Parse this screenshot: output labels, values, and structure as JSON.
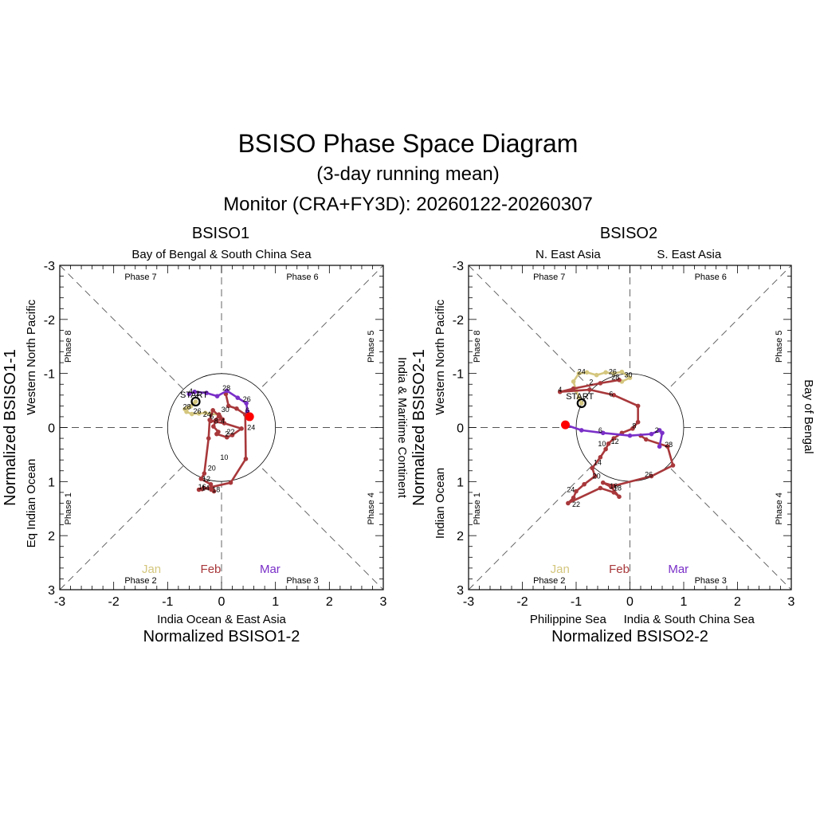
{
  "title": "BSISO Phase Space Diagram",
  "subtitle": "(3-day running mean)",
  "monitor": "Monitor (CRA+FY3D): 20260122-20260307",
  "month_legend": [
    {
      "label": "Jan",
      "color": "#D4C67E"
    },
    {
      "label": "Feb",
      "color": "#A8383B"
    },
    {
      "label": "Mar",
      "color": "#7A2FC8"
    }
  ],
  "chart_data": [
    {
      "type": "line",
      "panel_title": "BSISO1",
      "xlabel": "Normalized BSISO1-2",
      "ylabel": "Normalized BSISO1-1",
      "xlim": [
        -3,
        3
      ],
      "ylim": [
        -3,
        3
      ],
      "y_inverted": true,
      "x_ticks": [
        "-3",
        "-2",
        "-1",
        "0",
        "1",
        "2",
        "3"
      ],
      "y_ticks": [
        "-3",
        "-2",
        "-1",
        "0",
        "1",
        "2",
        "3"
      ],
      "top_region": "Bay of Bengal & South China Sea",
      "bottom_region": "India Ocean & East Asia",
      "left_regions": [
        "Eq Indian Ocean",
        "Western North Pacific"
      ],
      "right_region": "India & Maritime Continent",
      "phases": {
        "p1": "Phase 1",
        "p2": "Phase 2",
        "p3": "Phase 3",
        "p4": "Phase 4",
        "p5": "Phase 5",
        "p6": "Phase 6",
        "p7": "Phase 7",
        "p8": "Phase 8"
      },
      "start_label": "START",
      "series": [
        {
          "name": "Jan",
          "color": "#D4C67E",
          "x": [
            -0.48,
            -0.52,
            -0.57,
            -0.63,
            -0.68,
            -0.65,
            -0.55,
            -0.42,
            -0.3,
            -0.2,
            -0.05
          ],
          "y": [
            -0.48,
            -0.44,
            -0.39,
            -0.36,
            -0.34,
            -0.29,
            -0.25,
            -0.26,
            -0.27,
            -0.25,
            -0.24
          ],
          "labels": [
            {
              "text": "28",
              "x": -0.64,
              "y": -0.38
            },
            {
              "text": "26",
              "x": -0.45,
              "y": -0.3
            },
            {
              "text": "24",
              "x": -0.27,
              "y": -0.24
            },
            {
              "text": "30",
              "x": 0.07,
              "y": -0.33
            }
          ]
        },
        {
          "name": "Feb",
          "color": "#A8383B",
          "x": [
            -0.05,
            -0.1,
            -0.15,
            -0.06,
            -0.09,
            0.1,
            0.2,
            0.37,
            0.05,
            -0.2,
            0.02,
            -0.03,
            -0.16,
            -0.22,
            -0.24,
            -0.32,
            -0.38,
            -0.2,
            -0.14,
            -0.19,
            -0.33,
            -0.42,
            -0.36,
            0.17,
            0.45,
            0.44,
            0.28,
            0.13,
            0.08
          ],
          "y": [
            -0.24,
            -0.14,
            -0.02,
            0.08,
            0.12,
            0.18,
            0.14,
            0.02,
            -0.08,
            -0.12,
            -0.15,
            -0.2,
            -0.32,
            -0.14,
            0.2,
            0.85,
            0.95,
            1.05,
            1.18,
            1.15,
            1.12,
            1.15,
            1.14,
            1.02,
            0.58,
            -0.24,
            -0.35,
            -0.4,
            -0.62
          ],
          "labels": [
            {
              "text": "4",
              "x": 0.02,
              "y": -0.12
            },
            {
              "text": "2",
              "x": 0.1,
              "y": 0.12
            },
            {
              "text": "22",
              "x": 0.17,
              "y": 0.08
            },
            {
              "text": "6",
              "x": -0.18,
              "y": -0.21
            },
            {
              "text": "8",
              "x": -0.1,
              "y": -0.12
            },
            {
              "text": "10",
              "x": 0.05,
              "y": 0.55
            },
            {
              "text": "20",
              "x": -0.18,
              "y": 0.75
            },
            {
              "text": "12",
              "x": -0.28,
              "y": 0.95
            },
            {
              "text": "16",
              "x": -0.36,
              "y": 1.1
            },
            {
              "text": "18",
              "x": -0.1,
              "y": 1.15
            },
            {
              "text": "14",
              "x": -0.3,
              "y": 1.12
            }
          ]
        },
        {
          "name": "Mar",
          "color": "#7A2FC8",
          "x": [
            -0.6,
            -0.5,
            -0.28,
            -0.08,
            0.1,
            0.3,
            0.46,
            0.48,
            0.52
          ],
          "y": [
            -0.62,
            -0.66,
            -0.64,
            -0.58,
            -0.68,
            -0.55,
            -0.45,
            -0.3,
            -0.2
          ],
          "labels": [
            {
              "text": "4",
              "x": -0.57,
              "y": -0.67
            },
            {
              "text": "2",
              "x": -0.44,
              "y": -0.63
            },
            {
              "text": "28",
              "x": 0.09,
              "y": -0.73
            },
            {
              "text": "26",
              "x": 0.47,
              "y": -0.52
            },
            {
              "text": "6",
              "x": 0.48,
              "y": -0.32
            },
            {
              "text": "24",
              "x": 0.55,
              "y": 0.0
            }
          ]
        }
      ],
      "start": {
        "x": -0.48,
        "y": -0.48
      },
      "end": {
        "x": 0.52,
        "y": -0.2
      }
    },
    {
      "type": "line",
      "panel_title": "BSISO2",
      "xlabel": "Normalized BSISO2-2",
      "ylabel": "Normalized BSISO2-1",
      "xlim": [
        -3,
        3
      ],
      "ylim": [
        -3,
        3
      ],
      "y_inverted": true,
      "x_ticks": [
        "-3",
        "-2",
        "-1",
        "0",
        "1",
        "2",
        "3"
      ],
      "y_ticks": [
        "-3",
        "-2",
        "-1",
        "0",
        "1",
        "2",
        "3"
      ],
      "top_region_left": "N. East Asia",
      "top_region_right": "S. East Asia",
      "bottom_region_left": "Philippine Sea",
      "bottom_region_right": "India & South China Sea",
      "left_regions": [
        "Indian Ocean",
        "Western North Pacific"
      ],
      "right_region": "Bay of Bengal",
      "phases": {
        "p1": "Phase 1",
        "p2": "Phase 2",
        "p3": "Phase 3",
        "p4": "Phase 4",
        "p5": "Phase 5",
        "p6": "Phase 6",
        "p7": "Phase 7",
        "p8": "Phase 8"
      },
      "start_label": "START",
      "series": [
        {
          "name": "Jan",
          "color": "#D4C67E",
          "x": [
            -0.9,
            -0.95,
            -1.0,
            -1.05,
            -0.95,
            -0.8,
            -0.62,
            -0.45,
            -0.3,
            -0.15,
            0.0,
            -0.15,
            -0.2
          ],
          "y": [
            -0.45,
            -0.55,
            -0.68,
            -0.85,
            -1.0,
            -1.02,
            -0.97,
            -1.02,
            -1.0,
            -1.03,
            -0.92,
            -0.85,
            -0.88
          ],
          "labels": [
            {
              "text": "24",
              "x": -0.9,
              "y": -1.03
            },
            {
              "text": "26",
              "x": -0.32,
              "y": -1.03
            },
            {
              "text": "28",
              "x": -0.27,
              "y": -0.93
            },
            {
              "text": "30",
              "x": -0.03,
              "y": -0.97
            }
          ]
        },
        {
          "name": "Feb",
          "color": "#A8383B",
          "x": [
            -0.2,
            -0.55,
            -1.05,
            -1.3,
            -0.75,
            -0.3,
            0.15,
            0.15,
            0.05,
            -0.15,
            -0.3,
            -0.4,
            -0.45,
            -0.55,
            -0.7,
            -0.65,
            -0.85,
            -1.0,
            -1.05,
            -1.15,
            -0.55,
            -0.3,
            -0.2,
            -0.35,
            -0.5,
            -0.3,
            0.4,
            0.8,
            0.7,
            0.3,
            0.2
          ],
          "y": [
            -0.88,
            -0.82,
            -0.72,
            -0.66,
            -0.7,
            -0.6,
            -0.4,
            -0.1,
            0.02,
            0.1,
            0.2,
            0.3,
            0.4,
            0.55,
            0.75,
            0.9,
            1.05,
            1.18,
            1.3,
            1.4,
            1.12,
            1.2,
            1.28,
            1.1,
            1.02,
            1.08,
            0.9,
            0.7,
            0.35,
            0.22,
            0.15
          ],
          "labels": [
            {
              "text": "2",
              "x": -0.72,
              "y": -0.84
            },
            {
              "text": "4",
              "x": -1.3,
              "y": -0.7
            },
            {
              "text": "6",
              "x": -0.35,
              "y": -0.62
            },
            {
              "text": "8",
              "x": 0.08,
              "y": -0.03
            },
            {
              "text": "10",
              "x": -0.52,
              "y": 0.3
            },
            {
              "text": "12",
              "x": -0.28,
              "y": 0.26
            },
            {
              "text": "14",
              "x": -0.6,
              "y": 0.65
            },
            {
              "text": "20",
              "x": -0.62,
              "y": 0.9
            },
            {
              "text": "24",
              "x": -1.1,
              "y": 1.15
            },
            {
              "text": "22",
              "x": -1.0,
              "y": 1.42
            },
            {
              "text": "16",
              "x": -0.3,
              "y": 1.08
            },
            {
              "text": "18",
              "x": -0.23,
              "y": 1.12
            },
            {
              "text": "26",
              "x": 0.35,
              "y": 0.87
            }
          ]
        },
        {
          "name": "Mar",
          "color": "#7A2FC8",
          "x": [
            0.55,
            0.6,
            0.55,
            0.4,
            0.0,
            -0.5,
            -0.9,
            -1.2
          ],
          "y": [
            0.35,
            0.1,
            0.05,
            0.12,
            0.15,
            0.1,
            0.05,
            -0.05
          ],
          "labels": [
            {
              "text": "28",
              "x": 0.72,
              "y": 0.32
            },
            {
              "text": "2",
              "x": 0.5,
              "y": 0.05
            },
            {
              "text": "6",
              "x": -0.55,
              "y": 0.05
            }
          ]
        }
      ],
      "start": {
        "x": -0.9,
        "y": -0.45
      },
      "end": {
        "x": -1.2,
        "y": -0.05
      }
    }
  ]
}
